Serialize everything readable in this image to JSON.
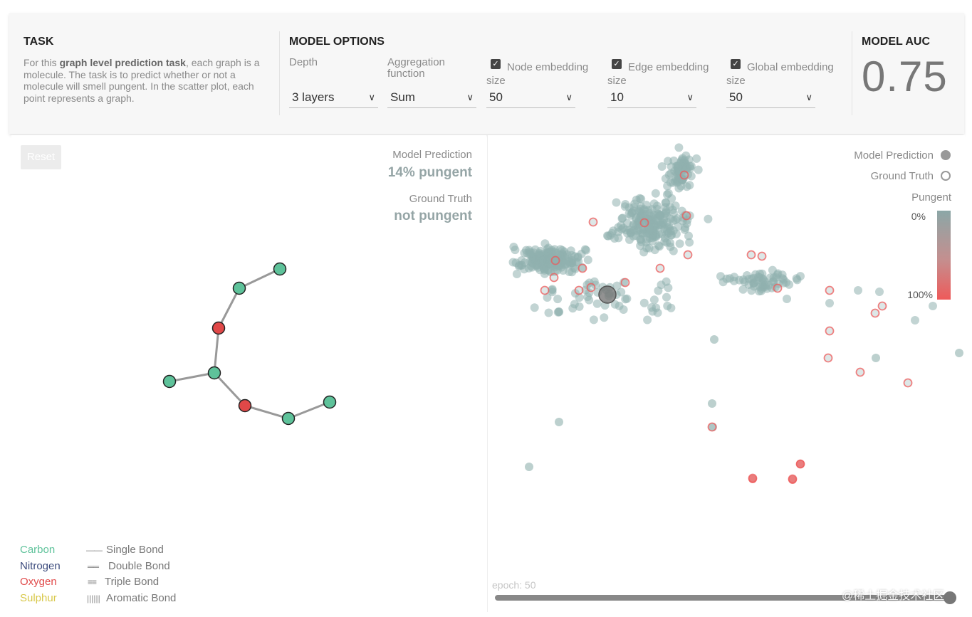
{
  "header": {
    "task": {
      "title": "TASK",
      "desc_before": "For this ",
      "desc_bold": "graph level prediction task",
      "desc_after": ", each graph is a molecule. The task is to predict whether or not a molecule will smell pungent. In the scatter plot, each point represents a graph."
    },
    "options": {
      "title": "MODEL OPTIONS",
      "depth": {
        "label": "Depth",
        "value": "3 layers"
      },
      "aggregation": {
        "label": "Aggregation function",
        "value": "Sum"
      },
      "node": {
        "label": "Node embedding size",
        "checked": true,
        "value": "50"
      },
      "edge": {
        "label": "Edge embedding size",
        "checked": true,
        "value": "10"
      },
      "global": {
        "label": "Global embedding size",
        "checked": true,
        "value": "50"
      }
    },
    "auc": {
      "title": "MODEL AUC",
      "value": "0.75"
    }
  },
  "left": {
    "reset": "Reset",
    "model_prediction_label": "Model Prediction",
    "model_prediction_value": "14% pungent",
    "ground_truth_label": "Ground Truth",
    "ground_truth_value": "not pungent",
    "atoms": [
      {
        "label": "Carbon",
        "color": "#5ec29a"
      },
      {
        "label": "Nitrogen",
        "color": "#3b4a7c"
      },
      {
        "label": "Oxygen",
        "color": "#e04848"
      },
      {
        "label": "Sulphur",
        "color": "#d8c84a"
      }
    ],
    "bonds": [
      {
        "label": "Single Bond",
        "symbol": "——"
      },
      {
        "label": "Double Bond",
        "symbol": "══"
      },
      {
        "label": "Triple Bond",
        "symbol": "≡≡"
      },
      {
        "label": "Aromatic Bond",
        "symbol": "||||||"
      }
    ],
    "molecule": {
      "nodes": [
        {
          "id": "n1",
          "element": "Carbon"
        },
        {
          "id": "n2",
          "element": "Carbon"
        },
        {
          "id": "n3",
          "element": "Oxygen"
        },
        {
          "id": "n4",
          "element": "Carbon"
        },
        {
          "id": "n5",
          "element": "Carbon"
        },
        {
          "id": "n6",
          "element": "Oxygen"
        },
        {
          "id": "n7",
          "element": "Carbon"
        },
        {
          "id": "n8",
          "element": "Carbon"
        }
      ],
      "edges": [
        [
          "n1",
          "n2"
        ],
        [
          "n2",
          "n3"
        ],
        [
          "n3",
          "n4"
        ],
        [
          "n4",
          "n5"
        ],
        [
          "n4",
          "n6"
        ],
        [
          "n6",
          "n7"
        ],
        [
          "n7",
          "n8"
        ]
      ]
    }
  },
  "right": {
    "legend_prediction": "Model Prediction",
    "legend_truth": "Ground Truth",
    "legend_color_title": "Pungent",
    "grad_top": "0%",
    "grad_bottom": "100%",
    "epoch_label": "epoch: 50",
    "epoch": 50,
    "colors": {
      "not_pungent": "#8fb0ae",
      "pungent": "#ee5a5a",
      "selected": "#777777"
    }
  },
  "watermark": "@稀土掘金技术社区"
}
